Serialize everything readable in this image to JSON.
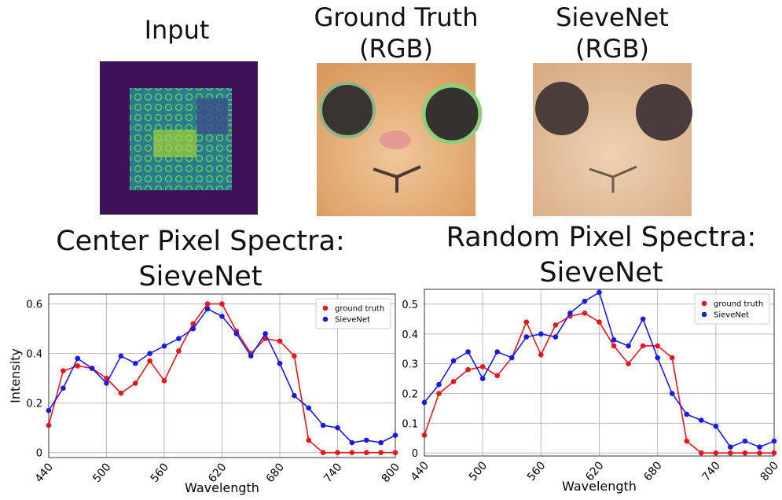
{
  "panels": [
    {
      "label": "Input"
    },
    {
      "label": "Ground Truth (RGB)"
    },
    {
      "label": "SieveNet (RGB)"
    }
  ],
  "chart_data": [
    {
      "type": "line",
      "title": "Center Pixel Spectra: SieveNet",
      "xlabel": "Wavelength",
      "ylabel": "Intensity",
      "x": [
        440,
        455,
        470,
        485,
        500,
        515,
        530,
        545,
        560,
        575,
        590,
        605,
        620,
        635,
        650,
        665,
        680,
        695,
        710,
        725,
        740,
        755,
        770,
        785,
        800
      ],
      "series": [
        {
          "name": "ground truth",
          "color": "#e8141e",
          "values": [
            0.11,
            0.33,
            0.35,
            0.34,
            0.3,
            0.24,
            0.28,
            0.37,
            0.29,
            0.41,
            0.52,
            0.6,
            0.6,
            0.49,
            0.4,
            0.46,
            0.45,
            0.39,
            0.05,
            0,
            0,
            0,
            0,
            0,
            0
          ]
        },
        {
          "name": "SieveNet",
          "color": "#1a1ae6",
          "values": [
            0.17,
            0.26,
            0.38,
            0.34,
            0.28,
            0.39,
            0.36,
            0.4,
            0.43,
            0.46,
            0.5,
            0.58,
            0.55,
            0.48,
            0.39,
            0.48,
            0.36,
            0.23,
            0.18,
            0.11,
            0.1,
            0.04,
            0.05,
            0.04,
            0.07
          ]
        }
      ],
      "xlim": [
        440,
        800
      ],
      "xticks": [
        440,
        500,
        560,
        620,
        680,
        740,
        800
      ],
      "ylim": [
        -0.02,
        0.64
      ],
      "yticks": [
        0,
        0.2,
        0.4,
        0.6
      ],
      "grid": true,
      "legend": "upper right"
    },
    {
      "type": "line",
      "title": "Random Pixel Spectra: SieveNet",
      "xlabel": "Wavelength",
      "x": [
        440,
        455,
        470,
        485,
        500,
        515,
        530,
        545,
        560,
        575,
        590,
        605,
        620,
        635,
        650,
        665,
        680,
        695,
        710,
        725,
        740,
        755,
        770,
        785,
        800
      ],
      "series": [
        {
          "name": "ground truth",
          "color": "#e8141e",
          "values": [
            0.06,
            0.2,
            0.24,
            0.28,
            0.29,
            0.26,
            0.32,
            0.44,
            0.33,
            0.43,
            0.46,
            0.47,
            0.44,
            0.36,
            0.3,
            0.36,
            0.36,
            0.32,
            0.04,
            0,
            0,
            0,
            0,
            0,
            0
          ]
        },
        {
          "name": "SieveNet",
          "color": "#1a1ae6",
          "values": [
            0.17,
            0.23,
            0.31,
            0.34,
            0.25,
            0.34,
            0.32,
            0.39,
            0.4,
            0.39,
            0.47,
            0.51,
            0.54,
            0.38,
            0.36,
            0.45,
            0.32,
            0.2,
            0.13,
            0.11,
            0.09,
            0.02,
            0.04,
            0.02,
            0.04
          ]
        }
      ],
      "xlim": [
        440,
        800
      ],
      "xticks": [
        440,
        500,
        560,
        620,
        680,
        740,
        800
      ],
      "ylim": [
        -0.01,
        0.55
      ],
      "yticks": [
        0,
        0.1,
        0.2,
        0.3,
        0.4,
        0.5
      ],
      "grid": true,
      "legend": "upper right"
    }
  ]
}
